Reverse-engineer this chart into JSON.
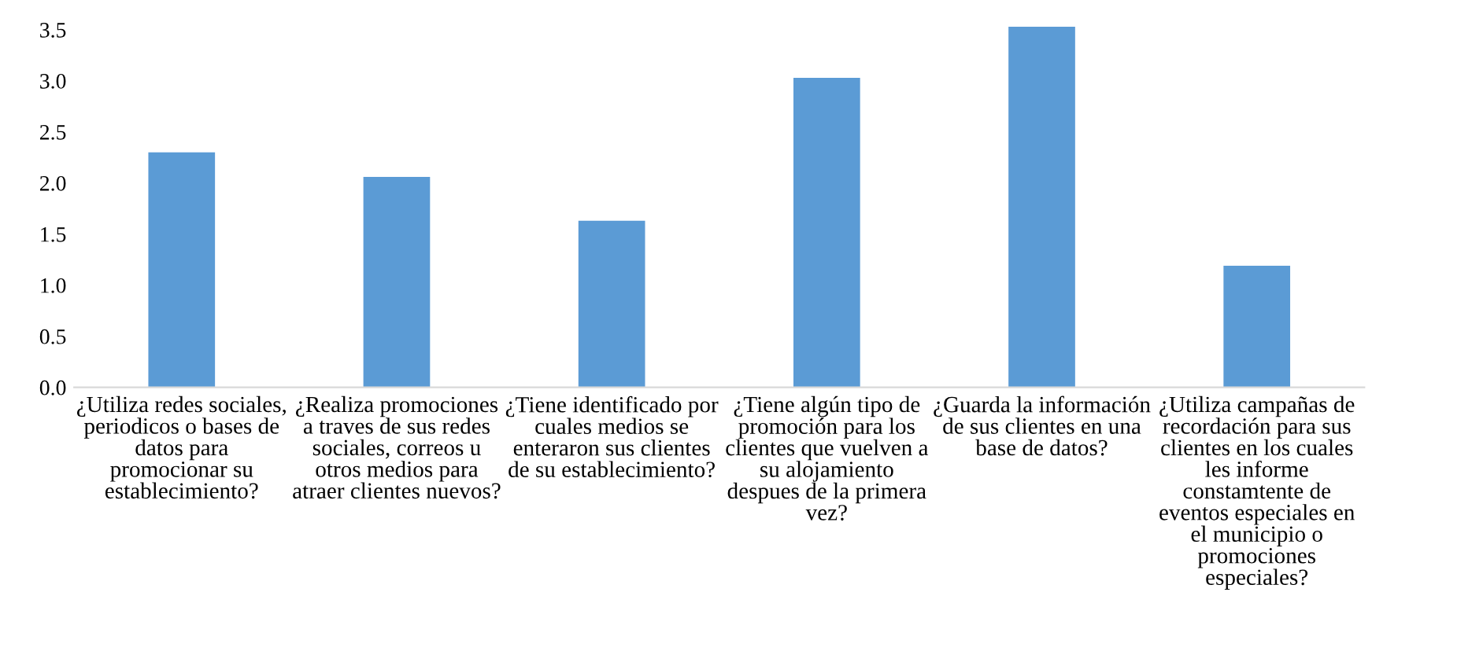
{
  "chart_data": {
    "type": "bar",
    "categories": [
      "¿Utiliza redes sociales,\nperiodicos o bases de\ndatos para\npromocionar su\nestablecimiento?",
      "¿Realiza promociones\na traves de sus redes\nsociales, correos u\notros medios para\natraer clientes nuevos?",
      "¿Tiene identificado por\ncuales medios se\nenteraron sus clientes\nde su establecimiento?",
      "¿Tiene algún tipo de\npromoción para los\nclientes que vuelven a\nsu alojamiento\ndespues de la primera\nvez?",
      "¿Guarda la información\nde sus clientes en una\nbase de datos?",
      "¿Utiliza campañas de\nrecordación para sus\nclientes en los cuales\nles informe\nconstamtente de\neventos especiales en\nel municipio o\npromociones\nespeciales?"
    ],
    "values": [
      2.3,
      2.06,
      1.63,
      3.03,
      3.53,
      1.19
    ],
    "color": "#5b9bd5",
    "ylim": [
      0,
      3.6
    ],
    "yticks": [
      {
        "value": 0,
        "label": "0.0"
      },
      {
        "value": 0.5,
        "label": "0.5"
      },
      {
        "value": 1,
        "label": "1.0"
      },
      {
        "value": 1.5,
        "label": "1.5"
      },
      {
        "value": 2,
        "label": "2.0"
      },
      {
        "value": 2.5,
        "label": "2.5"
      },
      {
        "value": 3,
        "label": "3.0"
      },
      {
        "value": 3.5,
        "label": "3.5"
      }
    ],
    "grid": false
  }
}
